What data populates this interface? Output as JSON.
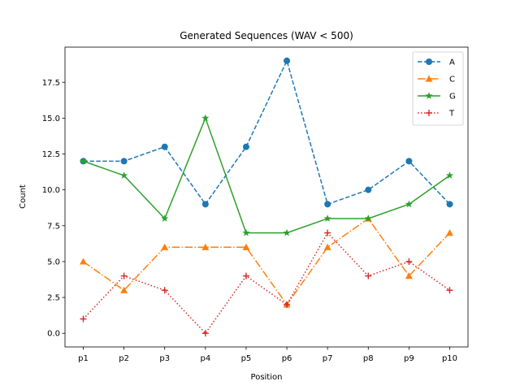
{
  "chart_data": {
    "type": "line",
    "title": "Generated Sequences (WAV < 500)",
    "xlabel": "Position",
    "ylabel": "Count",
    "categories": [
      "p1",
      "p2",
      "p3",
      "p4",
      "p5",
      "p6",
      "p7",
      "p8",
      "p9",
      "p10"
    ],
    "ylim": [
      -0.95,
      19.95
    ],
    "yticks": [
      0.0,
      2.5,
      5.0,
      7.5,
      10.0,
      12.5,
      15.0,
      17.5
    ],
    "ytick_labels": [
      "0.0",
      "2.5",
      "5.0",
      "7.5",
      "10.0",
      "12.5",
      "15.0",
      "17.5"
    ],
    "grid": false,
    "legend_position": "top-right",
    "series": [
      {
        "name": "A",
        "values": [
          12,
          12,
          13,
          9,
          13,
          19,
          9,
          10,
          12,
          9
        ],
        "color": "#1f77b4",
        "marker": "circle",
        "dash": "dashed"
      },
      {
        "name": "C",
        "values": [
          5,
          3,
          6,
          6,
          6,
          2,
          6,
          8,
          4,
          7
        ],
        "color": "#ff7f0e",
        "marker": "triangle",
        "dash": "dashdot"
      },
      {
        "name": "G",
        "values": [
          12,
          11,
          8,
          15,
          7,
          7,
          8,
          8,
          9,
          11
        ],
        "color": "#2ca02c",
        "marker": "star",
        "dash": "solid"
      },
      {
        "name": "T",
        "values": [
          1,
          4,
          3,
          0,
          4,
          2,
          7,
          4,
          5,
          3
        ],
        "color": "#d62728",
        "marker": "plus",
        "dash": "dotted"
      }
    ]
  }
}
